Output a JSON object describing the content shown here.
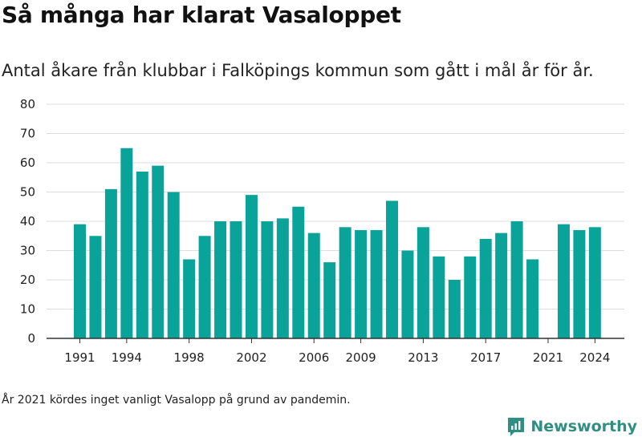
{
  "title": "Så många har klarat Vasaloppet",
  "subtitle": "Antal åkare från klubbar i Falköpings kommun som gått i mål år för år.",
  "footnote": "År 2021 kördes inget vanligt Vasalopp på grund av pandemin.",
  "brand": {
    "name": "Newsworthy",
    "icon": "newsworthy-logo-icon"
  },
  "colors": {
    "bar": "#0aa39a",
    "grid": "#dddddd",
    "axis": "#333333"
  },
  "chart_data": {
    "type": "bar",
    "x": [
      1991,
      1992,
      1993,
      1994,
      1995,
      1996,
      1997,
      1998,
      1999,
      2000,
      2001,
      2002,
      2003,
      2004,
      2005,
      2006,
      2007,
      2008,
      2009,
      2010,
      2011,
      2012,
      2013,
      2014,
      2015,
      2016,
      2017,
      2018,
      2019,
      2020,
      2021,
      2022,
      2023,
      2024
    ],
    "values": [
      39,
      35,
      51,
      65,
      57,
      59,
      50,
      27,
      35,
      40,
      40,
      49,
      40,
      41,
      45,
      36,
      26,
      38,
      37,
      37,
      47,
      30,
      38,
      28,
      20,
      28,
      34,
      36,
      40,
      27,
      null,
      39,
      37,
      38
    ],
    "x_tick_labels": [
      "1991",
      "1994",
      "1998",
      "2002",
      "2006",
      "2009",
      "2013",
      "2017",
      "2021",
      "2024"
    ],
    "y_ticks": [
      0,
      10,
      20,
      30,
      40,
      50,
      60,
      70,
      80
    ],
    "ylim": [
      0,
      80
    ],
    "grid": true,
    "legend": "none"
  }
}
